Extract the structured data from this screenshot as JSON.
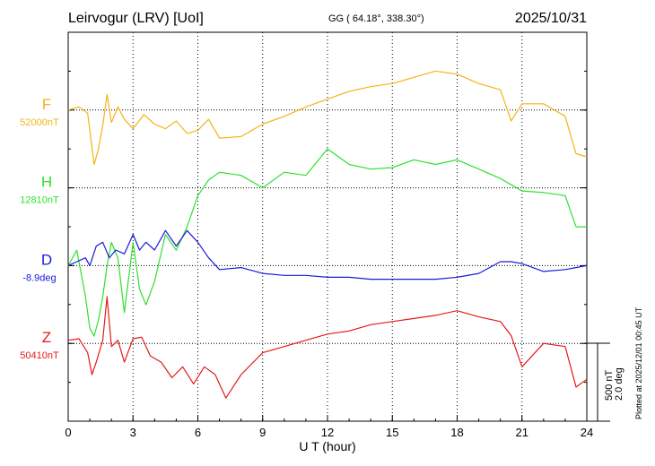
{
  "header": {
    "station": "Leirvogur (LRV)  [UoI]",
    "coords": "GG ( 64.18°, 338.30°)",
    "date": "2025/10/31"
  },
  "side_note": "Plotted at 2025/12/01 00:45 UT",
  "chart_data": {
    "type": "line",
    "xlabel": "U T (hour)",
    "xlim": [
      0,
      24
    ],
    "x_ticks": [
      "0",
      "3",
      "6",
      "9",
      "12",
      "15",
      "18",
      "21",
      "24"
    ],
    "grid": true,
    "scale_bar": {
      "nT": "500 nT",
      "deg": "2.0 deg"
    },
    "series": [
      {
        "name": "F",
        "baseline": "52000nT",
        "color": "#f5b316",
        "x": [
          0,
          0.5,
          0.9,
          1.2,
          1.4,
          1.6,
          1.8,
          2.0,
          2.3,
          2.6,
          3.0,
          3.5,
          4.0,
          4.5,
          5.0,
          5.5,
          6.0,
          6.5,
          7.0,
          8.0,
          9.0,
          10.0,
          11.0,
          12.0,
          13.0,
          14.0,
          15.0,
          16.0,
          17.0,
          18.0,
          19.0,
          20.0,
          20.5,
          21.0,
          22.0,
          23.0,
          23.5,
          24.0
        ],
        "y": [
          0,
          20,
          -20,
          -350,
          -250,
          -100,
          100,
          -80,
          20,
          -60,
          -120,
          -30,
          -90,
          -120,
          -70,
          -150,
          -130,
          -60,
          -180,
          -170,
          -90,
          -40,
          20,
          70,
          120,
          150,
          170,
          210,
          250,
          230,
          170,
          130,
          -70,
          40,
          40,
          -40,
          -280,
          -300
        ]
      },
      {
        "name": "H",
        "baseline": "12810nT",
        "color": "#2fe02f",
        "x": [
          0,
          0.4,
          0.8,
          1.0,
          1.2,
          1.4,
          1.6,
          1.8,
          2.0,
          2.3,
          2.6,
          3.0,
          3.3,
          3.6,
          4.0,
          4.5,
          5.0,
          5.5,
          6.0,
          6.5,
          7.0,
          8.0,
          9.0,
          10.0,
          11.0,
          12.0,
          13.0,
          14.0,
          15.0,
          16.0,
          17.0,
          18.0,
          19.0,
          20.0,
          21.0,
          22.0,
          23.0,
          23.5,
          24.0
        ],
        "y": [
          -500,
          -400,
          -700,
          -900,
          -950,
          -850,
          -700,
          -500,
          -350,
          -450,
          -800,
          -350,
          -650,
          -750,
          -600,
          -300,
          -400,
          -250,
          -50,
          50,
          100,
          80,
          0,
          100,
          80,
          250,
          150,
          120,
          130,
          180,
          150,
          180,
          120,
          60,
          -20,
          -30,
          -50,
          -250,
          -250
        ]
      },
      {
        "name": "D",
        "baseline": "-8.9deg",
        "color": "#1a1adb",
        "x": [
          0,
          0.4,
          0.8,
          1.0,
          1.3,
          1.6,
          1.9,
          2.2,
          2.6,
          3.0,
          3.3,
          3.6,
          4.0,
          4.5,
          5.0,
          5.5,
          6.0,
          6.5,
          7.0,
          8.0,
          9.0,
          10.0,
          11.0,
          12.0,
          13.0,
          14.0,
          15.0,
          16.0,
          17.0,
          18.0,
          19.0,
          20.0,
          20.5,
          21.0,
          22.0,
          23.0,
          24.0
        ],
        "y": [
          0.0,
          0.1,
          0.2,
          0.0,
          0.5,
          0.6,
          0.2,
          0.4,
          0.3,
          0.8,
          0.4,
          0.6,
          0.4,
          0.9,
          0.5,
          0.9,
          0.6,
          0.2,
          -0.1,
          -0.05,
          -0.2,
          -0.25,
          -0.25,
          -0.3,
          -0.3,
          -0.35,
          -0.35,
          -0.35,
          -0.35,
          -0.3,
          -0.2,
          0.1,
          0.1,
          0.05,
          -0.15,
          -0.1,
          0.0
        ]
      },
      {
        "name": "Z",
        "baseline": "50410nT",
        "color": "#e31a1a",
        "x": [
          0,
          0.5,
          0.9,
          1.1,
          1.3,
          1.6,
          1.8,
          2.0,
          2.3,
          2.6,
          3.0,
          3.4,
          3.8,
          4.3,
          4.8,
          5.3,
          5.8,
          6.3,
          6.8,
          7.3,
          8.0,
          9.0,
          10.0,
          11.0,
          12.0,
          13.0,
          14.0,
          15.0,
          16.0,
          17.0,
          18.0,
          19.0,
          20.0,
          20.5,
          21.0,
          22.0,
          23.0,
          23.5,
          24.0
        ],
        "y": [
          20,
          30,
          -60,
          -200,
          -120,
          20,
          300,
          -20,
          20,
          -120,
          30,
          40,
          -80,
          -120,
          -220,
          -150,
          -260,
          -150,
          -200,
          -350,
          -200,
          -60,
          -20,
          20,
          60,
          80,
          120,
          140,
          160,
          180,
          210,
          170,
          140,
          50,
          -150,
          0,
          -20,
          -280,
          -230
        ]
      }
    ]
  }
}
